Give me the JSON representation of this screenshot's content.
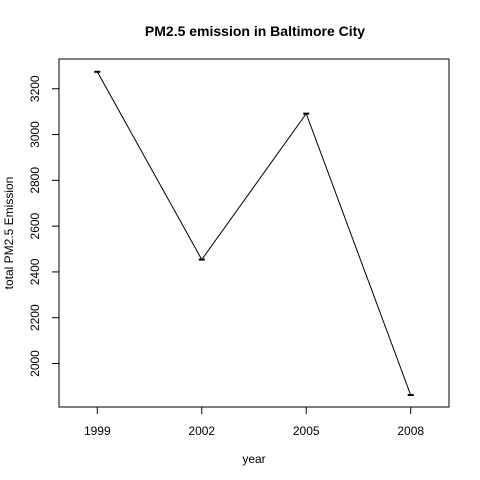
{
  "chart_data": {
    "type": "line",
    "title": "PM2.5 emission in Baltimore City",
    "xlabel": "year",
    "ylabel": "total PM2.5 Emission",
    "x": [
      1999,
      2002,
      2005,
      2008
    ],
    "y": [
      3274.18,
      2453.916,
      3091.354,
      1862.282
    ],
    "x_ticks": [
      "1999",
      "2002",
      "2005",
      "2008"
    ],
    "y_ticks": [
      2000,
      2200,
      2400,
      2600,
      2800,
      3000,
      3200
    ],
    "xlim": [
      1997.9,
      2009.1
    ],
    "ylim": [
      1810,
      3330
    ],
    "grid": false,
    "line_color": "#000000",
    "point_color": "#000000"
  }
}
